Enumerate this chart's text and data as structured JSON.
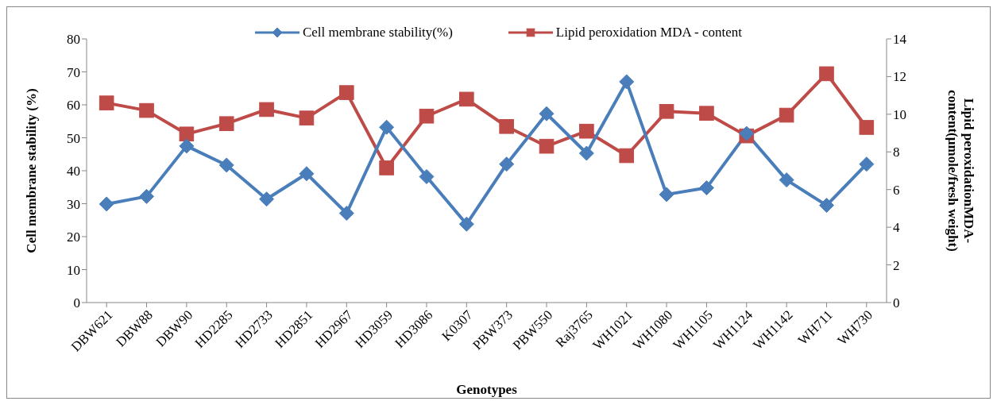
{
  "chart_data": {
    "type": "line",
    "xlabel": "Genotypes",
    "ylabel": "Cell membrane stability (%)",
    "y2label": "Lipid peroxidationMDA-content(µmole/fresh weight)",
    "categories": [
      "DBW621",
      "DBW88",
      "DBW90",
      "HD2285",
      "HD2733",
      "HD2851",
      "HD2967",
      "HD3059",
      "HD3086",
      "K0307",
      "PBW373",
      "PBW550",
      "Raj3765",
      "WH1021",
      "WH1080",
      "WH1105",
      "WH1124",
      "WH1142",
      "WH711",
      "WH730"
    ],
    "series": [
      {
        "name": "Cell membrane stability(%)",
        "color": "#4a7ebb",
        "marker": "diamond",
        "values": [
          29.9,
          32.2,
          47.5,
          41.7,
          31.4,
          39.1,
          27.1,
          53.2,
          38.2,
          23.8,
          42.0,
          57.3,
          45.3,
          67.0,
          32.8,
          34.8,
          51.3,
          37.2,
          29.5,
          42.0
        ]
      },
      {
        "name": "Lipid peroxidation MDA - content",
        "color": "#be4b48",
        "marker": "square",
        "axis": "y2",
        "values": [
          10.6,
          10.2,
          8.95,
          9.5,
          10.25,
          9.8,
          11.15,
          7.15,
          9.9,
          10.8,
          9.35,
          8.3,
          9.1,
          7.8,
          10.15,
          10.05,
          8.85,
          9.95,
          12.15,
          9.3
        ]
      }
    ],
    "ylim": [
      0,
      80
    ],
    "yticks": [
      0,
      10,
      20,
      30,
      40,
      50,
      60,
      70,
      80
    ],
    "y2lim": [
      0,
      14
    ],
    "y2ticks": [
      0,
      2,
      4,
      6,
      8,
      10,
      12,
      14
    ],
    "grid": false,
    "legend": "top",
    "line_style": "solid"
  }
}
